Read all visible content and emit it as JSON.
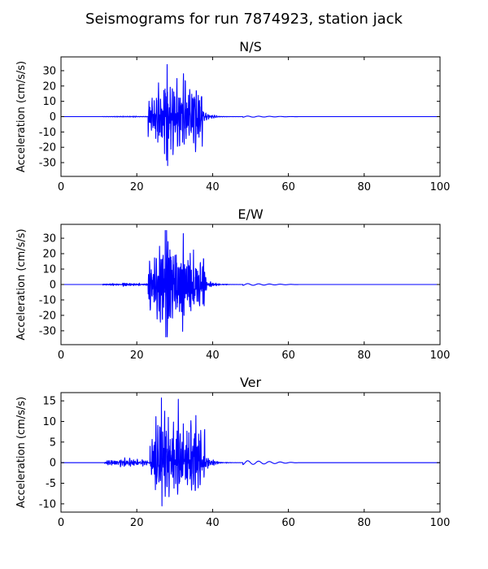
{
  "figure": {
    "title": "Seismograms for run 7874923, station jack"
  },
  "chart_data": [
    {
      "type": "line",
      "title": "N/S",
      "xlabel": "",
      "ylabel": "Acceleration (cm/s/s)",
      "xlim": [
        0,
        100
      ],
      "ylim": [
        -39,
        39
      ],
      "xticks": [
        0,
        20,
        40,
        60,
        80,
        100
      ],
      "yticks": [
        -30,
        -20,
        -10,
        0,
        10,
        20,
        30
      ],
      "color": "#0000ff",
      "signal": {
        "onset": 23.0,
        "peak_time": 28.0,
        "strong_end": 37.5,
        "coda_end": 48.0,
        "amplitude_max": 34,
        "amplitude_min": -32,
        "precursor_amplitude": 0.3,
        "tail_amplitude": 0.4
      }
    },
    {
      "type": "line",
      "title": "E/W",
      "xlabel": "",
      "ylabel": "Acceleration (cm/s/s)",
      "xlim": [
        0,
        100
      ],
      "ylim": [
        -39,
        39
      ],
      "xticks": [
        0,
        20,
        40,
        60,
        80,
        100
      ],
      "yticks": [
        -30,
        -20,
        -10,
        0,
        10,
        20,
        30
      ],
      "color": "#0000ff",
      "signal": {
        "onset": 23.0,
        "peak_time": 27.5,
        "strong_end": 38.0,
        "coda_end": 48.0,
        "amplitude_max": 35,
        "amplitude_min": -34,
        "precursor_amplitude": 0.8,
        "tail_amplitude": 0.6
      }
    },
    {
      "type": "line",
      "title": "Ver",
      "xlabel": "",
      "ylabel": "Acceleration (cm/s/s)",
      "xlim": [
        0,
        100
      ],
      "ylim": [
        -12,
        17
      ],
      "xticks": [
        0,
        20,
        40,
        60,
        80,
        100
      ],
      "yticks": [
        -10,
        -5,
        0,
        5,
        10,
        15
      ],
      "color": "#0000ff",
      "signal": {
        "onset": 23.5,
        "peak_time": 26.5,
        "strong_end": 38.0,
        "coda_end": 48.0,
        "amplitude_max": 15.7,
        "amplitude_min": -10.5,
        "precursor_amplitude": 0.8,
        "tail_amplitude": 0.5
      }
    }
  ]
}
